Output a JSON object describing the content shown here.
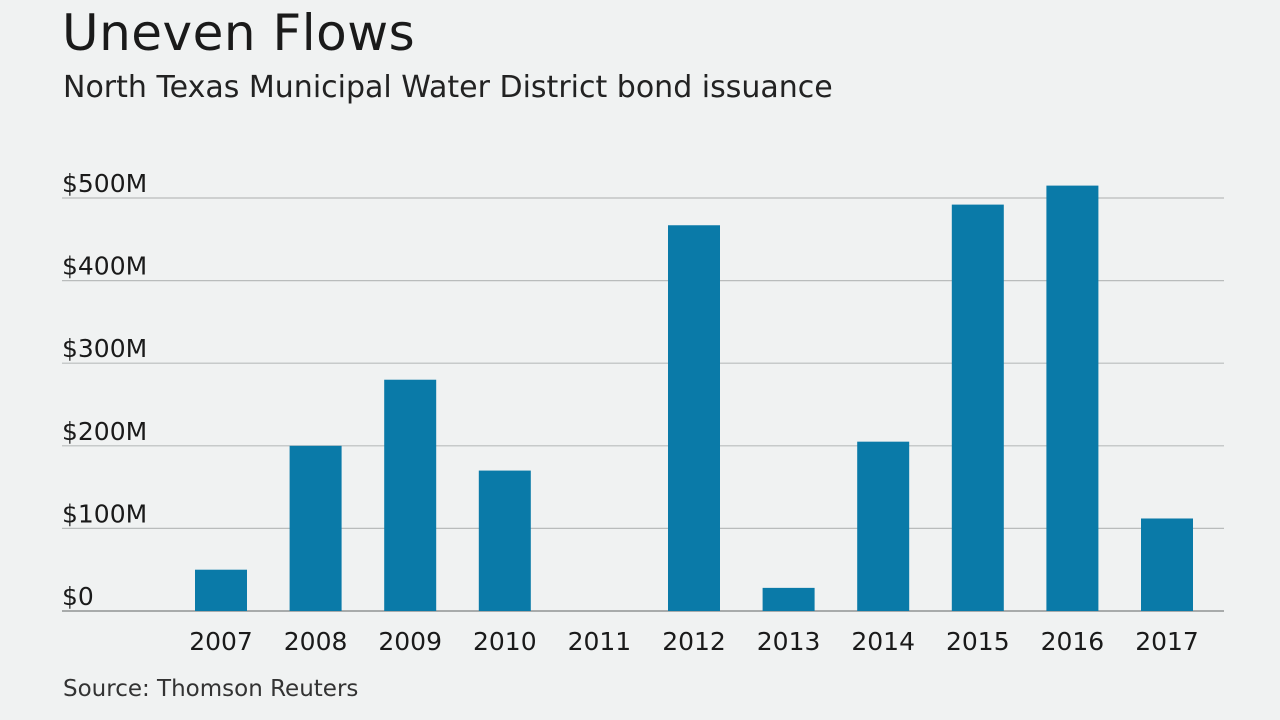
{
  "colors": {
    "background": "#f0f2f2",
    "bar": "#0a7aa8",
    "grid": "#b9bcbc"
  },
  "chart_data": {
    "type": "bar",
    "title": "Uneven Flows",
    "subtitle": "North Texas Municipal Water District bond issuance",
    "source": "Source: Thomson Reuters",
    "categories": [
      "2007",
      "2008",
      "2009",
      "2010",
      "2011",
      "2012",
      "2013",
      "2014",
      "2015",
      "2016",
      "2017"
    ],
    "values": [
      50,
      200,
      280,
      170,
      0,
      467,
      28,
      205,
      492,
      515,
      112
    ],
    "ylim": [
      0,
      500
    ],
    "yticks": [
      0,
      100,
      200,
      300,
      400,
      500
    ],
    "ytick_labels": [
      "$0",
      "$100M",
      "$200M",
      "$300M",
      "$400M",
      "$500M"
    ],
    "grid": true,
    "legend": "none"
  }
}
